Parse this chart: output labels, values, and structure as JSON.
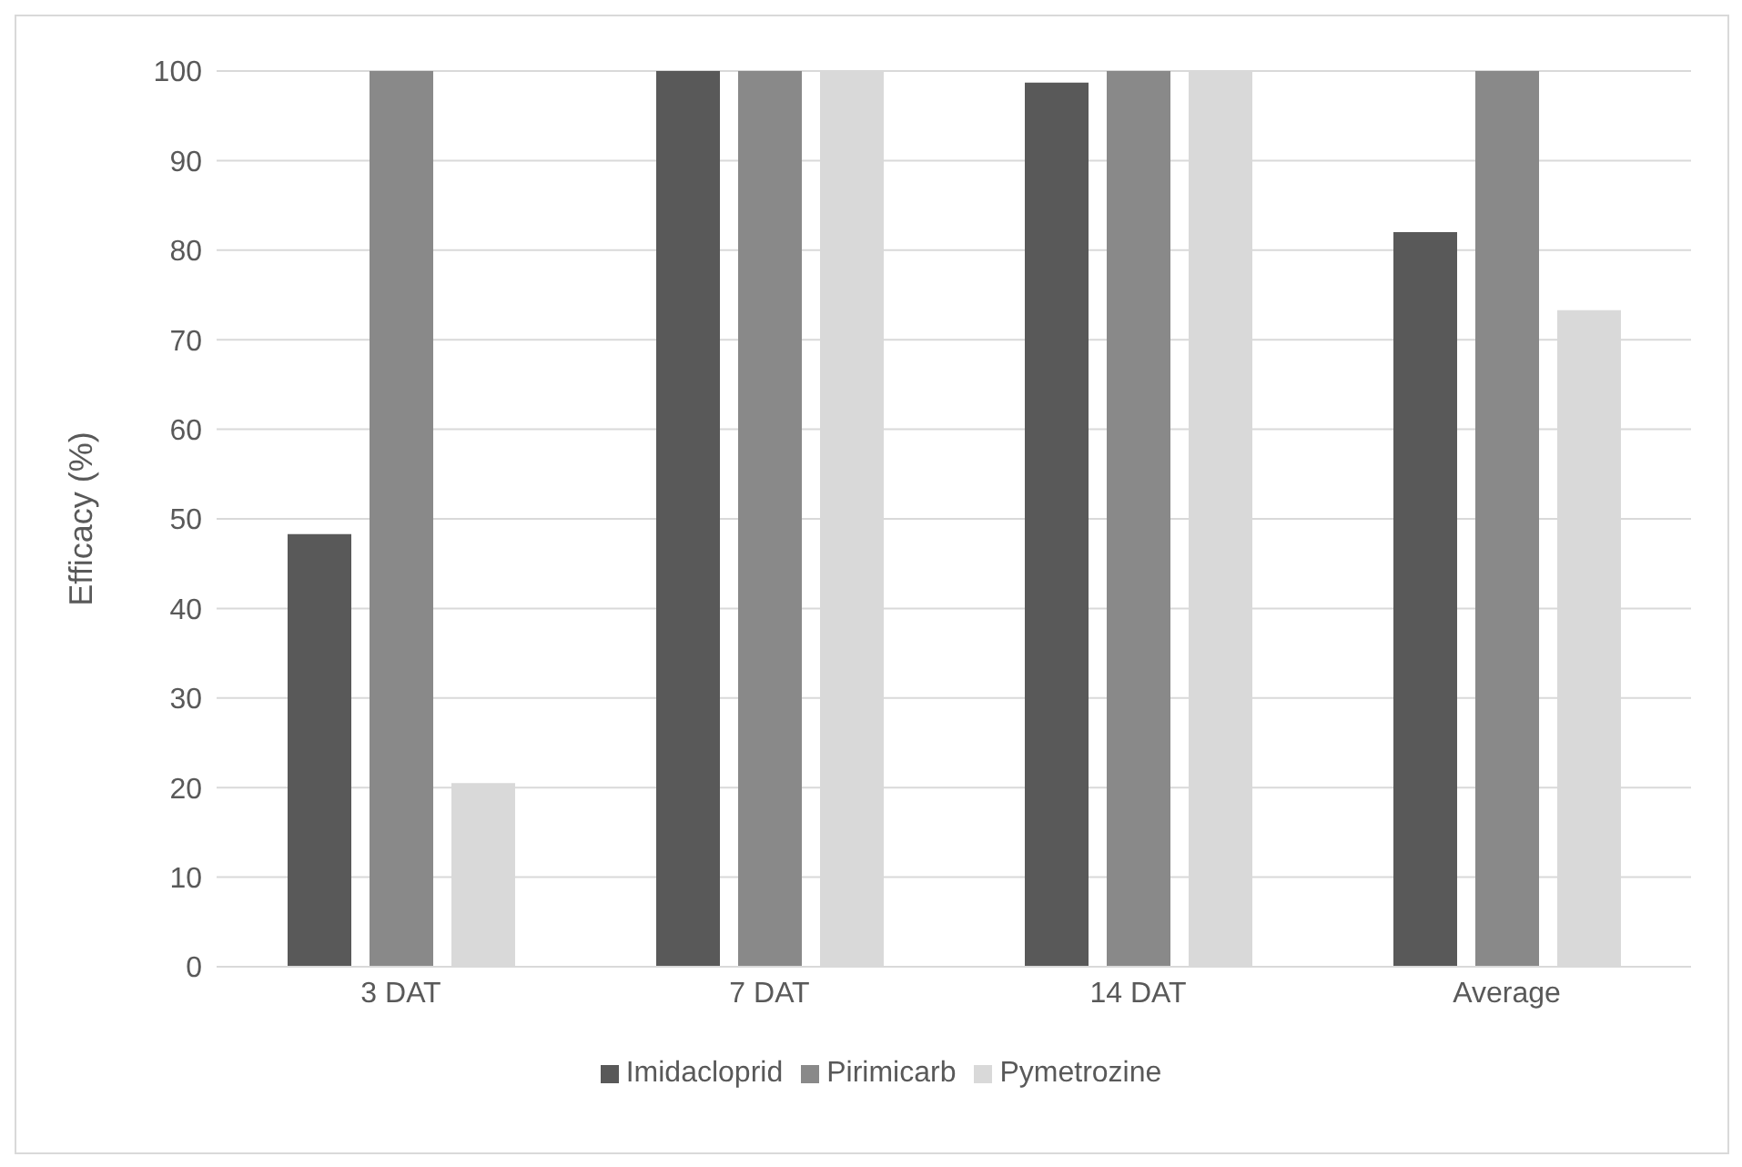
{
  "chart_data": {
    "type": "bar",
    "ylabel": "Efficacy (%)",
    "categories": [
      "3 DAT",
      "7 DAT",
      "14 DAT",
      "Average"
    ],
    "series": [
      {
        "name": "Imidacloprid",
        "color": "#595959",
        "values": [
          48.3,
          100,
          98.7,
          82
        ]
      },
      {
        "name": "Pirimicarb",
        "color": "#898989",
        "values": [
          100,
          100,
          100,
          100
        ]
      },
      {
        "name": "Pymetrozine",
        "color": "#d9d9d9",
        "values": [
          20.5,
          100,
          100,
          73.3
        ]
      }
    ],
    "ylim": [
      0,
      100
    ],
    "yticks": [
      0,
      10,
      20,
      30,
      40,
      50,
      60,
      70,
      80,
      90,
      100
    ],
    "grid": "y",
    "legend": "bottom"
  }
}
